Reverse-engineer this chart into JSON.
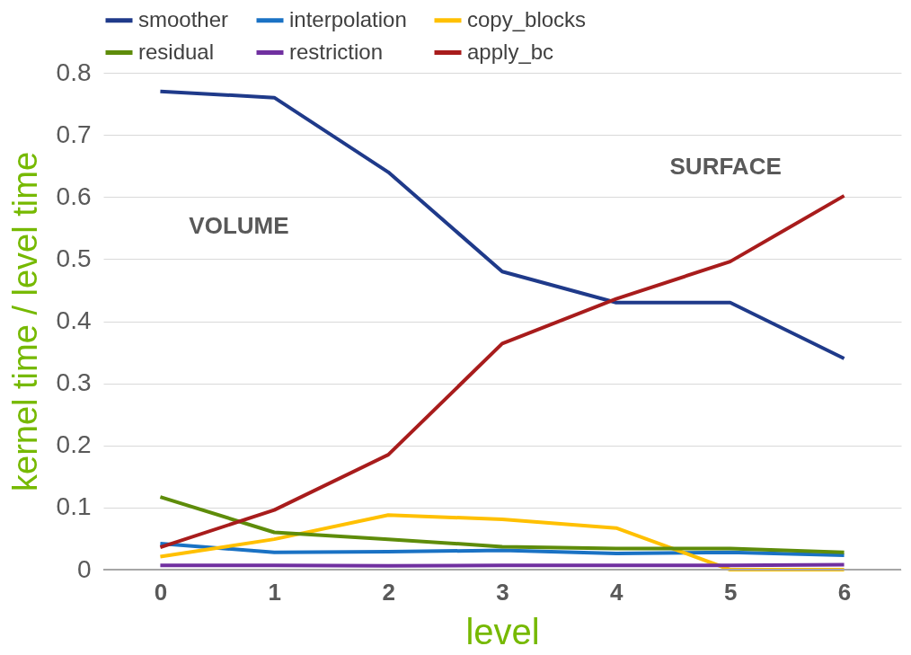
{
  "chart_data": {
    "type": "line",
    "xlabel": "level",
    "ylabel": "kernel time / level time",
    "categories": [
      "0",
      "1",
      "2",
      "3",
      "4",
      "5",
      "6"
    ],
    "series": [
      {
        "name": "smoother",
        "color": "#1f3a8a",
        "values": [
          0.77,
          0.76,
          0.64,
          0.48,
          0.43,
          0.43,
          0.34
        ]
      },
      {
        "name": "interpolation",
        "color": "#1a72c4",
        "values": [
          0.042,
          0.028,
          0.029,
          0.031,
          0.026,
          0.028,
          0.023
        ]
      },
      {
        "name": "copy_blocks",
        "color": "#ffc000",
        "values": [
          0.021,
          0.049,
          0.088,
          0.081,
          0.067,
          0,
          0
        ]
      },
      {
        "name": "residual",
        "color": "#5e8c0a",
        "values": [
          0.117,
          0.06,
          0.049,
          0.037,
          0.034,
          0.034,
          0.028
        ]
      },
      {
        "name": "restriction",
        "color": "#7030a0",
        "values": [
          0.007,
          0.007,
          0.006,
          0.007,
          0.007,
          0.007,
          0.008
        ]
      },
      {
        "name": "apply_bc",
        "color": "#a81c1c",
        "values": [
          0.036,
          0.096,
          0.185,
          0.364,
          0.436,
          0.496,
          0.602
        ]
      }
    ],
    "ylim": [
      0,
      0.8
    ],
    "yticks": [
      0,
      {
        "value": 0.1,
        "label": "0.1"
      },
      {
        "value": 0.2,
        "label": "0.2"
      },
      {
        "value": 0.3,
        "label": "0.3"
      },
      {
        "value": 0.4,
        "label": "0.4"
      },
      {
        "value": 0.5,
        "label": "0.5"
      },
      {
        "value": 0.6,
        "label": "0.6"
      },
      {
        "value": 0.7,
        "label": "0.7"
      },
      {
        "value": 0.8,
        "label": "0.8"
      }
    ],
    "grid": "y",
    "legend": "top",
    "marker": "none",
    "line_style": "solid",
    "annotations": [
      "VOLUME",
      "SURFACE"
    ]
  }
}
